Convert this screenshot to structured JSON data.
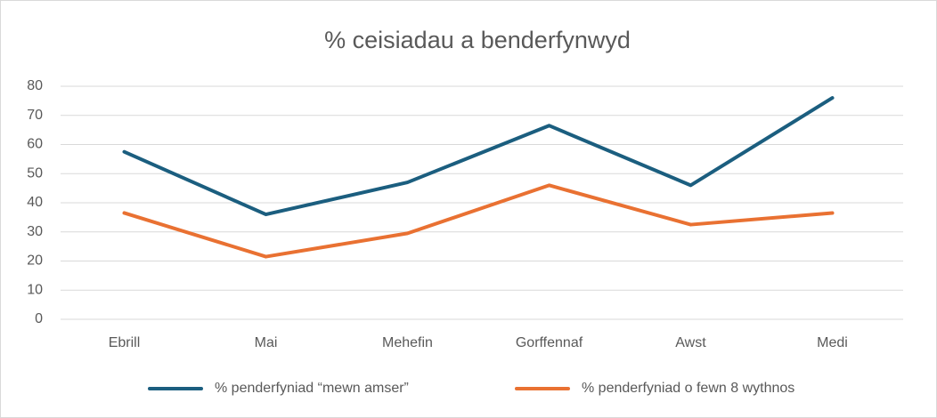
{
  "chart_data": {
    "type": "line",
    "title": "% ceisiadau a benderfynwyd",
    "categories": [
      "Ebrill",
      "Mai",
      "Mehefin",
      "Gorffennaf",
      "Awst",
      "Medi"
    ],
    "series": [
      {
        "name": "% penderfyniad “mewn amser”",
        "color": "#1b5e7f",
        "values": [
          57.5,
          36,
          47,
          66.5,
          46,
          76
        ]
      },
      {
        "name": "% penderfyniad o fewn 8 wythnos",
        "color": "#e97132",
        "values": [
          36.5,
          21.5,
          29.5,
          46,
          32.5,
          36.5
        ]
      }
    ],
    "ylim": [
      0,
      80
    ],
    "yticks": [
      0,
      10,
      20,
      30,
      40,
      50,
      60,
      70,
      80
    ],
    "grid": true,
    "legend": "bottom"
  }
}
